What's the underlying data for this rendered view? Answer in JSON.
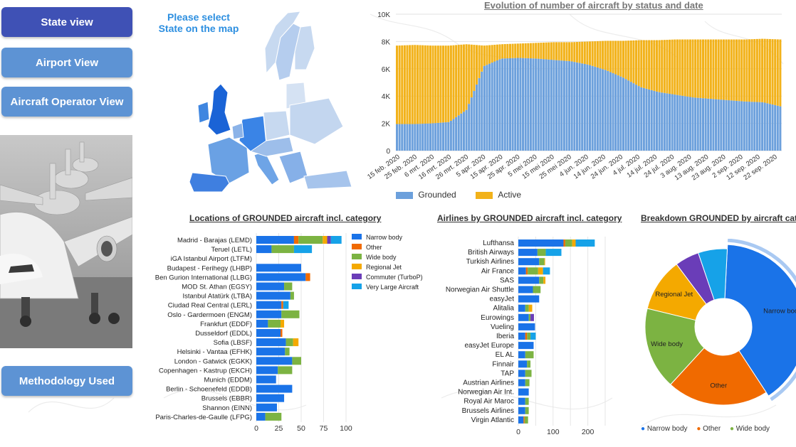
{
  "nav": {
    "state_view": "State view",
    "airport_view": "Airport View",
    "operator_view": "Aircraft Operator View",
    "methodology": "Methodology Used"
  },
  "map": {
    "hint": "Please select State on the map"
  },
  "colors": {
    "nav_primary": "#3f51b5",
    "nav_secondary": "#5d93d4",
    "grounded": "#6ca0dc",
    "active": "#f2b21a",
    "narrow_body": "#1a73e8",
    "other": "#f06a00",
    "wide_body": "#7cb342",
    "regional_jet": "#f4a900",
    "commuter": "#6a3db8",
    "very_large": "#16a2e8"
  },
  "charts": {
    "evolution_title": "Evolution of number of aircraft by status and date",
    "locations_title": "Locations of GROUNDED aircraft incl. category",
    "airlines_title": "Airlines by GROUNDED aircraft incl. category",
    "breakdown_title": "Breakdown GROUNDED by aircraft category"
  },
  "chart_data": [
    {
      "type": "area",
      "title": "Evolution of number of aircraft by status and date",
      "stacked": true,
      "y_ticks": [
        "0",
        "2K",
        "4K",
        "6K",
        "8K",
        "10K"
      ],
      "ylim": [
        0,
        10000
      ],
      "x_labels": [
        "15 feb. 2020",
        "25 feb. 2020",
        "6 mrt. 2020",
        "16 mrt. 2020",
        "26 mrt. 2020",
        "5 apr. 2020",
        "15 apr. 2020",
        "25 apr. 2020",
        "5 mei 2020",
        "15 mei 2020",
        "25 mei 2020",
        "4 jun. 2020",
        "14 jun. 2020",
        "24 jun. 2020",
        "4 jul. 2020",
        "14 jul. 2020",
        "24 jul. 2020",
        "3 aug. 2020",
        "13 aug. 2020",
        "23 aug. 2020",
        "2 sep. 2020",
        "12 sep. 2020",
        "22 sep. 2020"
      ],
      "series": [
        {
          "name": "Grounded",
          "values": [
            1950,
            1950,
            2000,
            2100,
            3000,
            6200,
            6750,
            6800,
            6750,
            6650,
            6550,
            6300,
            5900,
            5350,
            4650,
            4300,
            4100,
            3900,
            3800,
            3700,
            3600,
            3550,
            3250
          ]
        },
        {
          "name": "Active",
          "values": [
            5750,
            5800,
            5700,
            5600,
            4800,
            1500,
            1050,
            1050,
            1150,
            1300,
            1400,
            1700,
            2150,
            2700,
            3450,
            3800,
            4050,
            4250,
            4350,
            4450,
            4550,
            4650,
            4900
          ]
        }
      ],
      "legend": "bottom-left"
    },
    {
      "type": "bar",
      "orientation": "horizontal",
      "stacked": true,
      "title": "Locations of GROUNDED aircraft incl. category",
      "x_ticks": [
        "0",
        "25",
        "50",
        "75",
        "100"
      ],
      "xlim": [
        0,
        100
      ],
      "categories": [
        "Madrid - Barajas (LEMD)",
        "Teruel (LETL)",
        "iGA Istanbul Airport (LTFM)",
        "Budapest - Ferihegy (LHBP)",
        "Ben Gurion International (LLBG)",
        "MOD St. Athan (EGSY)",
        "Istanbul Atatürk (LTBA)",
        "Ciudad Real Central (LERL)",
        "Oslo - Gardermoen (ENGM)",
        "Frankfurt (EDDF)",
        "Dusseldorf (EDDL)",
        "Sofia (LBSF)",
        "Helsinki - Vantaa (EFHK)",
        "London - Gatwick (EGKK)",
        "Copenhagen - Kastrup (EKCH)",
        "Munich (EDDM)",
        "Berlin - Schoenefeld (EDDB)",
        "Brussels (EBBR)",
        "Shannon (EINN)",
        "Paris-Charles-de-Gaulle (LFPG)"
      ],
      "legend_entries": [
        "Narrow body",
        "Other",
        "Wide body",
        "Regional Jet",
        "Commuter (TurboP)",
        "Very Large Aircraft"
      ],
      "series": [
        {
          "name": "Narrow body",
          "values": [
            42,
            17,
            0,
            50,
            55,
            31,
            38,
            28,
            28,
            13,
            27,
            33,
            32,
            40,
            24,
            22,
            40,
            31,
            23,
            10
          ]
        },
        {
          "name": "Other",
          "values": [
            5,
            0,
            0,
            0,
            5,
            0,
            0,
            2,
            0,
            0,
            2,
            0,
            0,
            0,
            0,
            0,
            0,
            0,
            0,
            0
          ]
        },
        {
          "name": "Wide body",
          "values": [
            27,
            25,
            0,
            0,
            0,
            9,
            4,
            0,
            20,
            14,
            0,
            8,
            5,
            10,
            16,
            0,
            0,
            0,
            0,
            18
          ]
        },
        {
          "name": "Regional Jet",
          "values": [
            5,
            0,
            0,
            0,
            0,
            0,
            0,
            0,
            0,
            4,
            0,
            6,
            0,
            0,
            0,
            0,
            0,
            0,
            0,
            0
          ]
        },
        {
          "name": "Commuter (TurboP)",
          "values": [
            4,
            0,
            0,
            0,
            0,
            0,
            0,
            0,
            0,
            0,
            0,
            0,
            0,
            0,
            0,
            0,
            0,
            0,
            0,
            0
          ]
        },
        {
          "name": "Very Large Aircraft",
          "values": [
            12,
            20,
            0,
            0,
            0,
            0,
            0,
            6,
            0,
            0,
            0,
            0,
            0,
            0,
            0,
            0,
            0,
            0,
            0,
            0
          ]
        }
      ],
      "legend": "right"
    },
    {
      "type": "bar",
      "orientation": "horizontal",
      "stacked": true,
      "title": "Airlines by GROUNDED aircraft incl. category",
      "x_ticks": [
        "0",
        "100",
        "200"
      ],
      "xlim": [
        0,
        250
      ],
      "categories": [
        "Lufthansa",
        "British Airways",
        "Turkish Airlines",
        "Air France",
        "SAS",
        "Norwegian Air Shuttle",
        "easyJet",
        "Alitalia",
        "Eurowings",
        "Vueling",
        "Iberia",
        "easyJet Europe",
        "EL AL",
        "Finnair",
        "TAP",
        "Austrian Airlines",
        "Norwegian Air Int.",
        "Royal Air Maroc",
        "Brussels Airlines",
        "Virgin Atlantic"
      ],
      "series": [
        {
          "name": "Narrow body",
          "values": [
            130,
            55,
            60,
            22,
            60,
            42,
            60,
            20,
            30,
            48,
            20,
            44,
            20,
            25,
            20,
            20,
            30,
            20,
            20,
            15
          ]
        },
        {
          "name": "Other",
          "values": [
            5,
            0,
            0,
            5,
            0,
            0,
            0,
            0,
            0,
            0,
            5,
            0,
            0,
            0,
            0,
            0,
            0,
            0,
            0,
            3
          ]
        },
        {
          "name": "Wide body",
          "values": [
            20,
            24,
            15,
            30,
            12,
            22,
            0,
            10,
            5,
            0,
            10,
            0,
            24,
            10,
            18,
            12,
            0,
            10,
            10,
            10
          ]
        },
        {
          "name": "Regional Jet",
          "values": [
            10,
            0,
            2,
            14,
            6,
            0,
            0,
            10,
            0,
            0,
            0,
            0,
            0,
            0,
            0,
            0,
            0,
            0,
            0,
            0
          ]
        },
        {
          "name": "Commuter (TurboP)",
          "values": [
            0,
            0,
            0,
            0,
            0,
            0,
            0,
            0,
            10,
            0,
            0,
            0,
            0,
            0,
            0,
            0,
            0,
            0,
            0,
            0
          ]
        },
        {
          "name": "Very Large Aircraft",
          "values": [
            55,
            45,
            0,
            20,
            0,
            0,
            0,
            0,
            0,
            0,
            15,
            0,
            0,
            0,
            0,
            0,
            0,
            0,
            0,
            0
          ]
        }
      ]
    },
    {
      "type": "pie",
      "title": "Breakdown GROUNDED by aircraft category",
      "slices": [
        {
          "name": "Narrow body",
          "value": 40
        },
        {
          "name": "Other",
          "value": 21
        },
        {
          "name": "Wide body",
          "value": 17
        },
        {
          "name": "Regional Jet",
          "value": 11
        },
        {
          "name": "Commuter (TurboP)",
          "value": 5
        },
        {
          "name": "Very Large Aircraft",
          "value": 6
        }
      ],
      "slice_labels": [
        "Narrow body",
        "Other",
        "Wide body",
        "Regional Jet"
      ],
      "legend_entries": [
        "Narrow body",
        "Other",
        "Wide body"
      ],
      "legend": "bottom"
    }
  ]
}
